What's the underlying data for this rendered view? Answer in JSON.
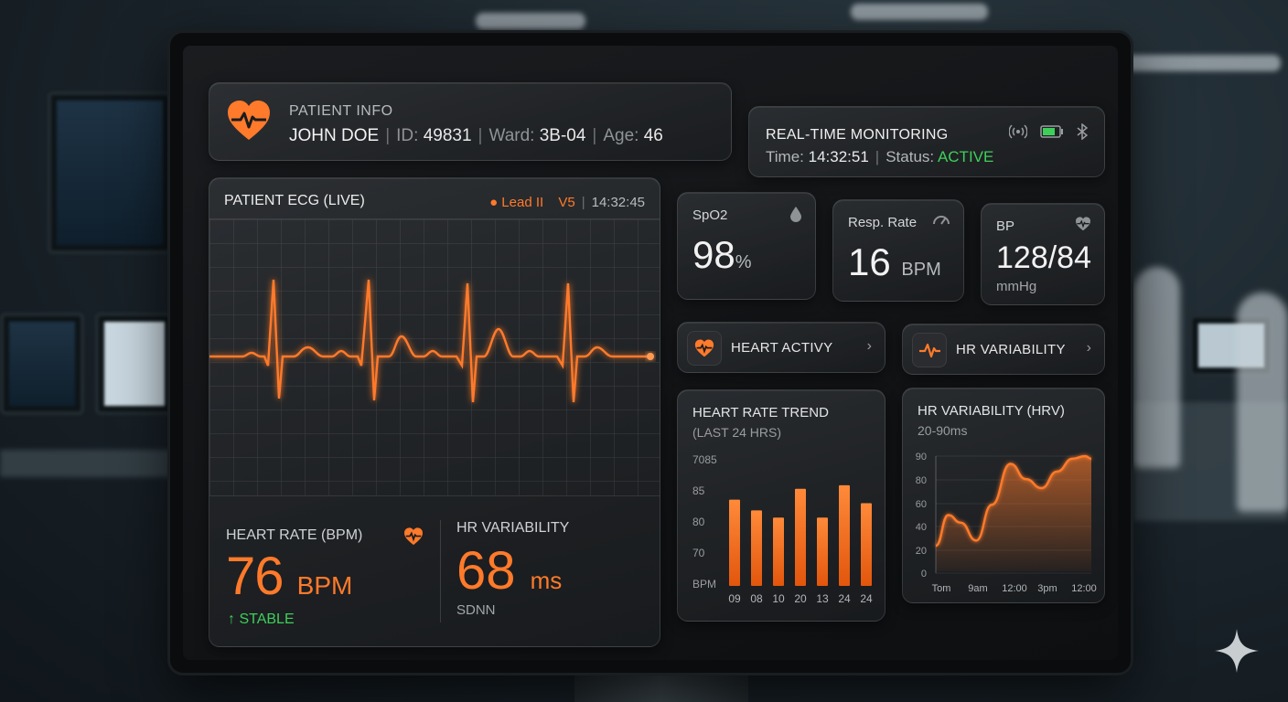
{
  "patient": {
    "section_label": "PATIENT INFO",
    "name": "JOHN DOE",
    "id_label": "ID:",
    "id": "49831",
    "ward_label": "Ward:",
    "ward": "3B-04",
    "age_label": "Age:",
    "age": "46"
  },
  "realtime": {
    "title": "REAL-TIME MONITORING",
    "time_label": "Time:",
    "time": "14:32:51",
    "status_label": "Status:",
    "status": "ACTIVE",
    "icons": [
      "signal-icon",
      "battery-icon",
      "bluetooth-icon"
    ]
  },
  "ecg": {
    "title": "PATIENT ECG (LIVE)",
    "lead": "Lead II",
    "lead_alt": "V5",
    "timestamp": "14:32:45"
  },
  "heart_rate": {
    "label": "HEART RATE (BPM)",
    "value": "76",
    "unit": "BPM",
    "status": "STABLE"
  },
  "hr_variability_summary": {
    "label": "HR VARIABILITY",
    "value": "68",
    "unit": "ms",
    "sub": "SDNN"
  },
  "spo2": {
    "label": "SpO2",
    "value": "98",
    "unit": "%"
  },
  "resp_rate": {
    "label": "Resp. Rate",
    "value": "16",
    "unit": "BPM"
  },
  "bp": {
    "label": "BP",
    "value": "128/84",
    "unit": "mmHg"
  },
  "nav": {
    "heart_activity": "HEART ACTIVY",
    "hr_variability": "HR VARIABILITY",
    "chevron": "›"
  },
  "colors": {
    "accent": "#ff7a2a",
    "status_ok": "#3ecf5a",
    "panel": "#1a1c1f"
  },
  "chart_data": [
    {
      "type": "bar",
      "title": "HEART RATE TREND",
      "subtitle": "(LAST 24 HRS)",
      "y_tick_labels": [
        "7085",
        "85",
        "80",
        "70",
        "BPM"
      ],
      "categories": [
        "09",
        "08",
        "10",
        "20",
        "13",
        "24",
        "24"
      ],
      "values": [
        84,
        81,
        79,
        87,
        79,
        88,
        83
      ],
      "ylim": [
        60,
        90
      ],
      "grid": false
    },
    {
      "type": "area",
      "title": "HR VARIABILITY (HRV)",
      "subtitle": "20-90ms",
      "y_ticks": [
        90,
        80,
        60,
        40,
        20,
        0
      ],
      "x_tick_labels": [
        "Tom",
        "9am",
        "12:00",
        "3pm",
        "12:00"
      ],
      "x": [
        0,
        0.08,
        0.16,
        0.26,
        0.36,
        0.48,
        0.58,
        0.68,
        0.78,
        0.88,
        0.96,
        1.0
      ],
      "values": [
        20,
        44,
        38,
        24,
        52,
        84,
        72,
        65,
        78,
        88,
        90,
        88
      ],
      "grid": true
    }
  ]
}
